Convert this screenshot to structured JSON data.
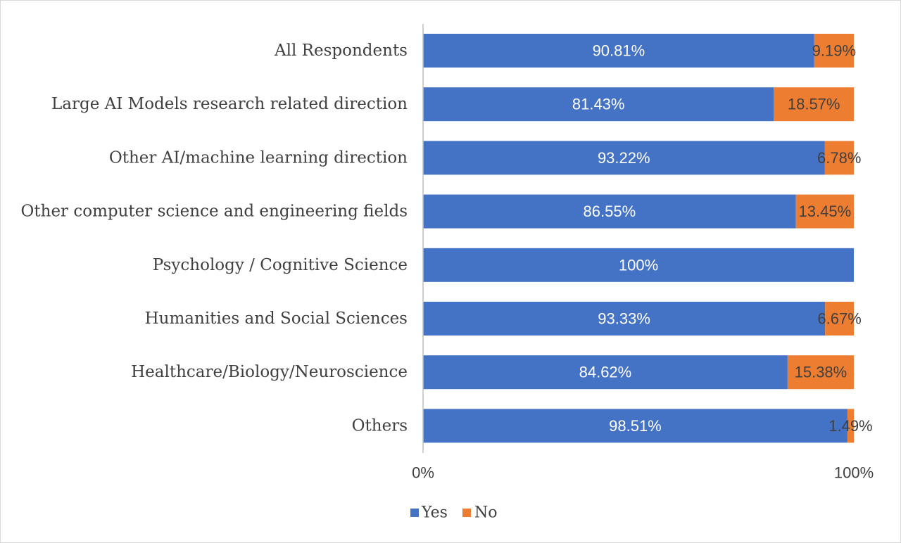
{
  "chart_data": {
    "type": "bar",
    "orientation": "horizontal",
    "stacked": "percent",
    "categories": [
      "All Respondents",
      "Large AI Models research related direction",
      "Other AI/machine learning direction",
      "Other computer science and engineering fields",
      "Psychology / Cognitive Science",
      "Humanities and Social Sciences",
      "Healthcare/Biology/Neuroscience",
      "Others"
    ],
    "series": [
      {
        "name": "Yes",
        "color": "#4472c4",
        "values": [
          90.81,
          81.43,
          93.22,
          86.55,
          100,
          93.33,
          84.62,
          98.51
        ],
        "labels": [
          "90.81%",
          "81.43%",
          "93.22%",
          "86.55%",
          "100%",
          "93.33%",
          "84.62%",
          "98.51%"
        ]
      },
      {
        "name": "No",
        "color": "#ed7d31",
        "values": [
          9.19,
          18.57,
          6.78,
          13.45,
          0,
          6.67,
          15.38,
          1.49
        ],
        "labels": [
          "9.19%",
          "18.57%",
          "6.78%",
          "13.45%",
          "",
          "6.67%",
          "15.38%",
          "1.49%"
        ]
      }
    ],
    "xlim": [
      0,
      100
    ],
    "x_ticks": [
      "0%",
      "100%"
    ],
    "title": "",
    "xlabel": "",
    "ylabel": "",
    "grid": false,
    "legend": "bottom"
  }
}
